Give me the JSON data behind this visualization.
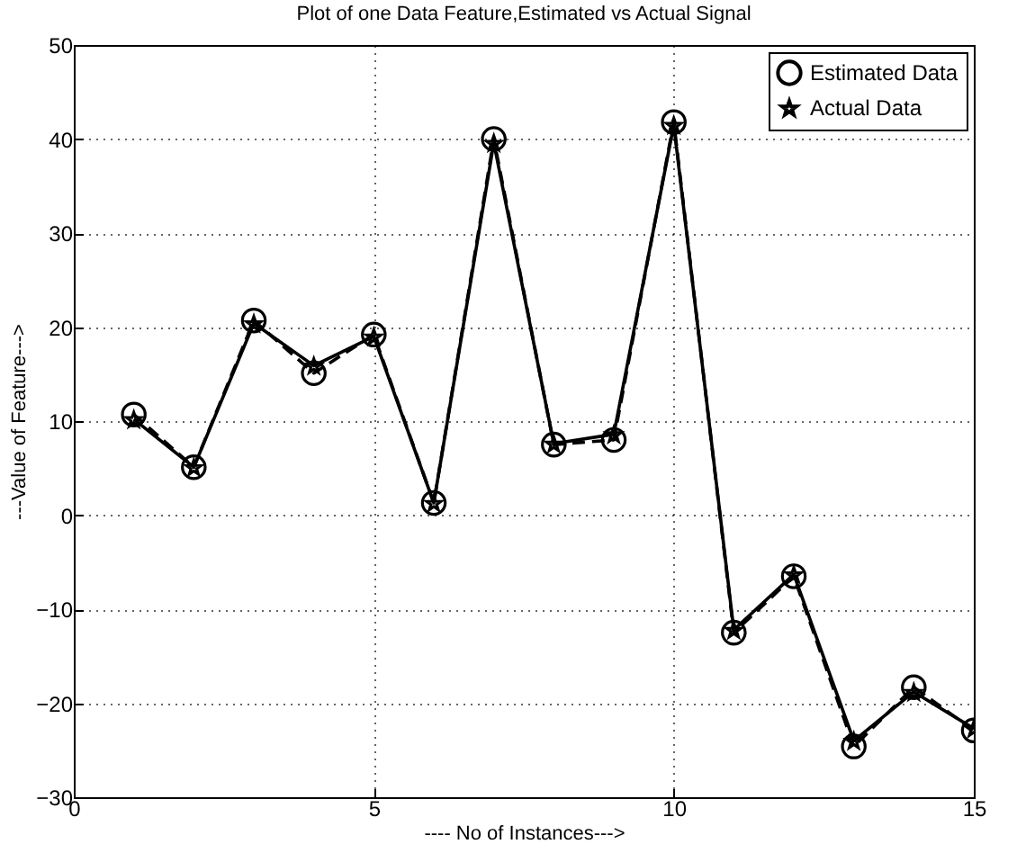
{
  "chart_data": {
    "type": "line",
    "title": "Plot of one Data Feature,Estimated vs Actual Signal",
    "xlabel": "---- No of Instances--->",
    "ylabel": "---Value of Feature--->",
    "x": [
      1,
      2,
      3,
      4,
      5,
      6,
      7,
      8,
      9,
      10,
      11,
      12,
      13,
      14,
      15
    ],
    "series": [
      {
        "name": "Estimated Data",
        "color": "#000000",
        "marker": "circle",
        "line_style": "dashed",
        "values": [
          10.7,
          5.1,
          20.7,
          15.1,
          19.2,
          1.3,
          40,
          7.5,
          8.0,
          41.8,
          -12.5,
          -6.5,
          -24.6,
          -18.3,
          -22.9
        ]
      },
      {
        "name": "Actual Data",
        "color": "#000000",
        "marker": "star",
        "line_style": "solid",
        "values": [
          10.2,
          5.1,
          20.4,
          15.9,
          19.0,
          1.3,
          39.6,
          7.6,
          8.6,
          41.5,
          -12.2,
          -6.3,
          -24.0,
          -18.8,
          -22.7
        ]
      }
    ],
    "xlim": [
      0,
      15
    ],
    "xticks": [
      0,
      5,
      10,
      15
    ],
    "ylim": [
      -30,
      50
    ],
    "yticks": [
      -30,
      -20,
      -10,
      0,
      10,
      20,
      30,
      40,
      50
    ],
    "grid": true,
    "legend": "top right"
  }
}
